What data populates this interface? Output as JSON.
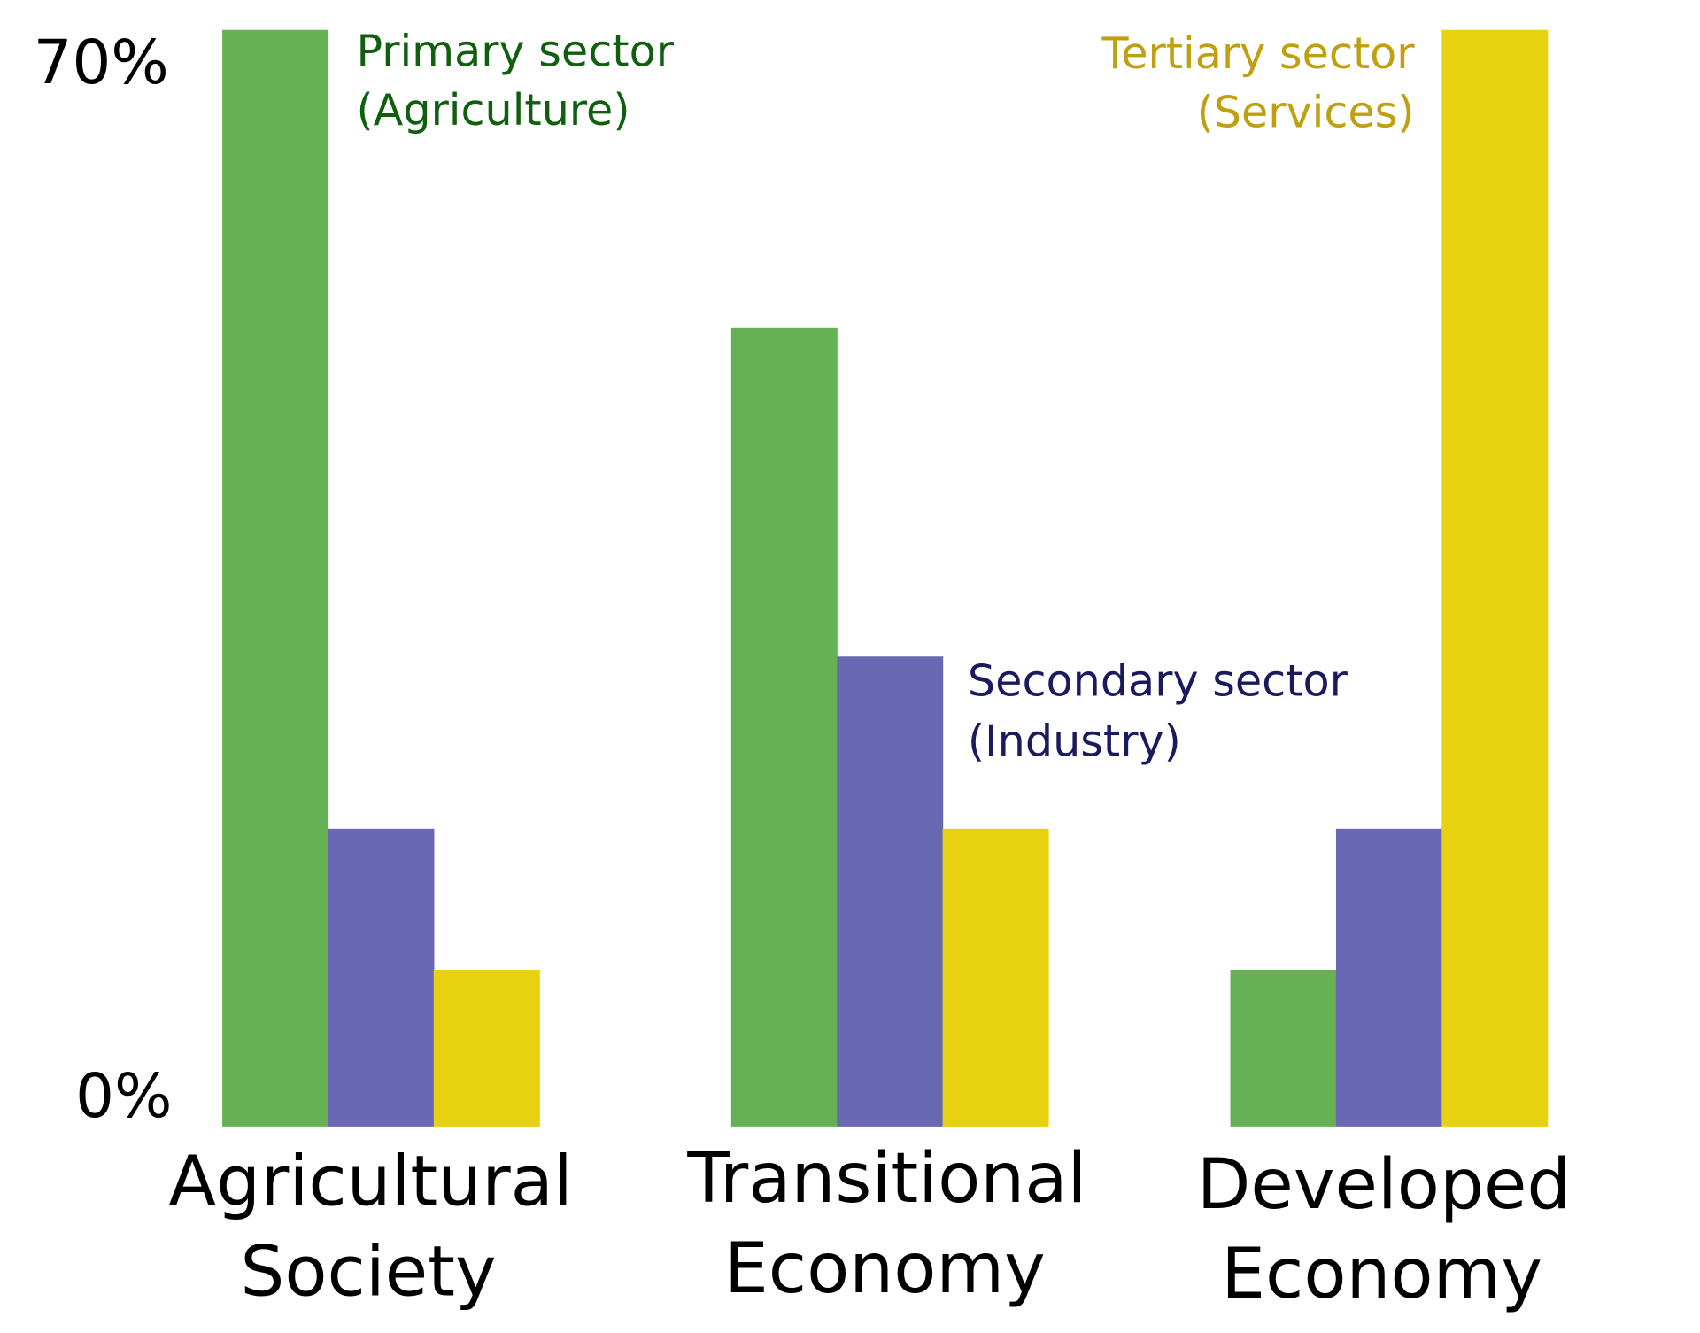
{
  "chart_data": {
    "type": "bar",
    "title": "",
    "xlabel": "",
    "ylabel": "",
    "ylim": [
      0,
      70
    ],
    "y_tick_labels": [
      "0%",
      "70%"
    ],
    "y_ticks": [
      0,
      70
    ],
    "grid": false,
    "categories": [
      {
        "line1": "Agricultural",
        "line2": "Society"
      },
      {
        "line1": "Transitional",
        "line2": "Economy"
      },
      {
        "line1": "Developed",
        "line2": "Economy"
      }
    ],
    "series": [
      {
        "name": "Primary sector",
        "sub": "(Agriculture)",
        "color": "#66b056",
        "label_color": "#0f5f0f",
        "values": [
          70,
          51,
          10
        ]
      },
      {
        "name": "Secondary sector",
        "sub": "(Industry)",
        "color": "#6969b3",
        "label_color": "#1a1a5e",
        "values": [
          19,
          30,
          19
        ]
      },
      {
        "name": "Tertiary sector",
        "sub": "(Services)",
        "color": "#e8d20f",
        "label_color": "#c0a010",
        "values": [
          10,
          19,
          70
        ]
      }
    ]
  }
}
